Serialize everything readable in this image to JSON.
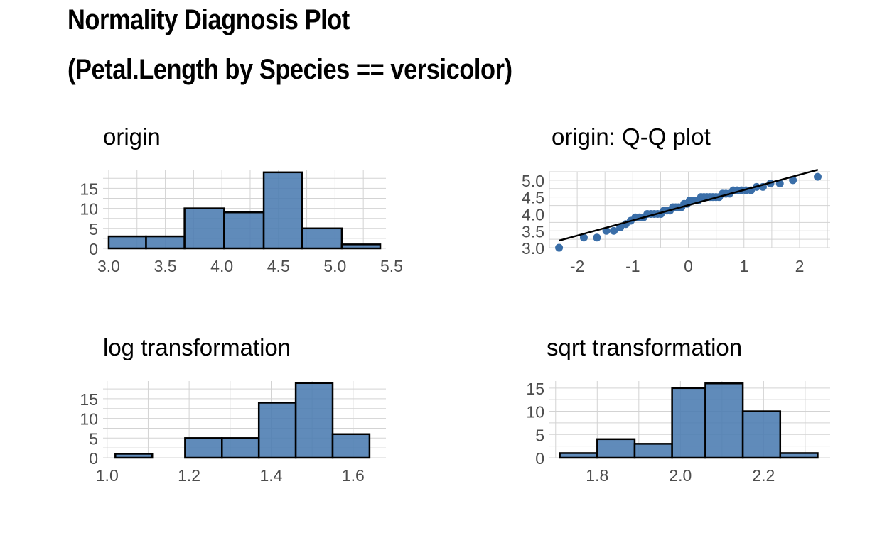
{
  "title_line1": "Normality Diagnosis Plot",
  "title_line2": "(Petal.Length by Species == versicolor)",
  "colors": {
    "bar_fill": "#4a7bb0",
    "bar_edge": "#000000",
    "point": "#3a6ea8",
    "grid": "#d3d3d3"
  },
  "chart_data": [
    {
      "id": "origin",
      "type": "bar",
      "title": "origin",
      "bins": [
        [
          3.0,
          3.33
        ],
        [
          3.33,
          3.67
        ],
        [
          3.67,
          4.02
        ],
        [
          4.02,
          4.37
        ],
        [
          4.37,
          4.71
        ],
        [
          4.71,
          5.06
        ],
        [
          5.06,
          5.4
        ]
      ],
      "values": [
        3,
        3,
        10,
        9,
        19,
        5,
        1
      ],
      "xlim": [
        2.95,
        5.45
      ],
      "ylim": [
        0,
        19.5
      ],
      "xticks": [
        3.0,
        3.5,
        4.0,
        4.5,
        5.0,
        5.5
      ],
      "xtick_labels": [
        "3.0",
        "3.5",
        "4.0",
        "4.5",
        "5.0",
        "5.5"
      ],
      "yticks": [
        0,
        5,
        10,
        15
      ],
      "ytick_labels": [
        "0",
        "5",
        "10",
        "15"
      ],
      "grid": true
    },
    {
      "id": "qq",
      "type": "scatter",
      "title": "origin: Q-Q plot",
      "xlim": [
        -2.5,
        2.55
      ],
      "ylim": [
        2.98,
        5.25
      ],
      "xticks": [
        -2,
        -1,
        0,
        1,
        2
      ],
      "xtick_labels": [
        "-2",
        "-1",
        "0",
        "1",
        "2"
      ],
      "yticks": [
        3.0,
        3.5,
        4.0,
        4.5,
        5.0
      ],
      "ytick_labels": [
        "3.0",
        "3.5",
        "4.0",
        "4.5",
        "5.0"
      ],
      "line": {
        "x": [
          -2.33,
          2.33
        ],
        "y": [
          3.21,
          5.31
        ]
      },
      "grid": true
    },
    {
      "id": "log",
      "type": "bar",
      "title": "log transformation",
      "bins": [
        [
          1.02,
          1.11
        ],
        [
          1.11,
          1.19
        ],
        [
          1.19,
          1.28
        ],
        [
          1.28,
          1.37
        ],
        [
          1.37,
          1.46
        ],
        [
          1.46,
          1.55
        ],
        [
          1.55,
          1.64
        ]
      ],
      "values": [
        1,
        0,
        5,
        5,
        14,
        19,
        6
      ],
      "xlim": [
        0.99,
        1.68
      ],
      "ylim": [
        0,
        19.5
      ],
      "xticks": [
        1.0,
        1.2,
        1.4,
        1.6
      ],
      "xtick_labels": [
        "1.0",
        "1.2",
        "1.4",
        "1.6"
      ],
      "yticks": [
        0,
        5,
        10,
        15
      ],
      "ytick_labels": [
        "0",
        "5",
        "10",
        "15"
      ],
      "grid": true
    },
    {
      "id": "sqrt",
      "type": "bar",
      "title": "sqrt transformation",
      "bins": [
        [
          1.71,
          1.8
        ],
        [
          1.8,
          1.89
        ],
        [
          1.89,
          1.98
        ],
        [
          1.98,
          2.06
        ],
        [
          2.06,
          2.15
        ],
        [
          2.15,
          2.24
        ],
        [
          2.24,
          2.33
        ]
      ],
      "values": [
        1,
        4,
        3,
        15,
        16,
        10,
        1
      ],
      "xlim": [
        1.685,
        2.36
      ],
      "ylim": [
        0,
        16.5
      ],
      "xticks": [
        1.8,
        2.0,
        2.2
      ],
      "xtick_labels": [
        "1.8",
        "2.0",
        "2.2"
      ],
      "yticks": [
        0,
        5,
        10,
        15
      ],
      "ytick_labels": [
        "0",
        "5",
        "10",
        "15"
      ],
      "grid": true
    }
  ]
}
